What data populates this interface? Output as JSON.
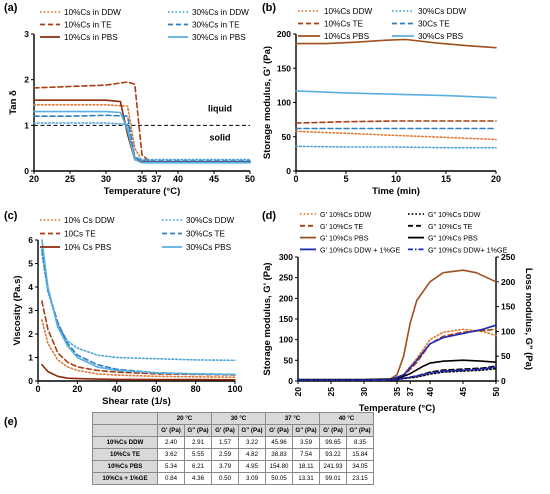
{
  "chart_data": [
    {
      "panel": "(a)",
      "type": "line",
      "xlabel": "Temperature (°C)",
      "ylabel": "Tan δ",
      "xlim": [
        20,
        50
      ],
      "ylim": [
        0,
        3
      ],
      "xticks": [
        20,
        25,
        30,
        35,
        37,
        40,
        45,
        50
      ],
      "yticks": [
        0,
        1,
        2,
        3
      ],
      "reference_line": {
        "y": 1,
        "style": "dashed",
        "color": "#000000"
      },
      "annotations": [
        "liquid",
        "solid"
      ],
      "series": [
        {
          "name": "10%Cs in DDW",
          "color": "#e07b39",
          "dash": "dot",
          "x": [
            20,
            25,
            30,
            33,
            34,
            35,
            36,
            37,
            40,
            45,
            50
          ],
          "y": [
            1.45,
            1.45,
            1.45,
            1.42,
            0.5,
            0.22,
            0.2,
            0.2,
            0.2,
            0.2,
            0.2
          ]
        },
        {
          "name": "10%Cs in TE",
          "color": "#a93e14",
          "dash": "dash",
          "x": [
            20,
            25,
            30,
            33,
            34,
            35,
            36,
            37,
            40,
            45,
            50
          ],
          "y": [
            1.82,
            1.85,
            1.88,
            1.95,
            1.9,
            0.35,
            0.22,
            0.2,
            0.2,
            0.2,
            0.2
          ]
        },
        {
          "name": "10%Cs in PBS",
          "color": "#8b2c0c",
          "dash": "solid",
          "x": [
            20,
            25,
            30,
            32,
            33,
            34,
            35,
            36,
            37,
            40,
            45,
            50
          ],
          "y": [
            1.55,
            1.55,
            1.55,
            1.52,
            0.8,
            0.25,
            0.2,
            0.2,
            0.2,
            0.2,
            0.2,
            0.2
          ]
        },
        {
          "name": "30%Cs in DDW",
          "color": "#4aa3d8",
          "dash": "dot",
          "x": [
            20,
            25,
            30,
            33,
            34,
            35,
            36,
            37,
            40,
            45,
            50
          ],
          "y": [
            1.05,
            1.05,
            1.05,
            1.02,
            0.3,
            0.25,
            0.25,
            0.25,
            0.25,
            0.25,
            0.25
          ]
        },
        {
          "name": "30%Cs in TE",
          "color": "#2f7fc1",
          "dash": "dash",
          "x": [
            20,
            25,
            30,
            33,
            34,
            35,
            36,
            37,
            40,
            45,
            50
          ],
          "y": [
            1.2,
            1.2,
            1.22,
            1.2,
            0.3,
            0.22,
            0.22,
            0.22,
            0.22,
            0.22,
            0.22
          ]
        },
        {
          "name": "30%Cs in PBS",
          "color": "#5aaee0",
          "dash": "solid",
          "x": [
            20,
            25,
            30,
            32,
            33,
            34,
            35,
            36,
            37,
            40,
            45,
            50
          ],
          "y": [
            1.3,
            1.3,
            1.3,
            1.28,
            0.9,
            0.25,
            0.18,
            0.18,
            0.18,
            0.18,
            0.18,
            0.18
          ]
        }
      ]
    },
    {
      "panel": "(b)",
      "type": "line",
      "xlabel": "Time (min)",
      "ylabel": "Storage modulus, G' (Pa)",
      "xlim": [
        0,
        20
      ],
      "ylim": [
        0,
        200
      ],
      "xticks": [
        0,
        5,
        10,
        15,
        20
      ],
      "yticks": [
        0,
        50,
        100,
        150,
        200
      ],
      "series": [
        {
          "name": "10%Cs DDW",
          "color": "#e07b39",
          "dash": "dot",
          "x": [
            0,
            5,
            10,
            15,
            20
          ],
          "y": [
            58,
            55,
            52,
            49,
            46
          ]
        },
        {
          "name": "10%Cs TE",
          "color": "#a93e14",
          "dash": "dash",
          "x": [
            0,
            5,
            10,
            15,
            20
          ],
          "y": [
            70,
            72,
            73,
            73,
            73
          ]
        },
        {
          "name": "10%Cs PBS",
          "color": "#a0501e",
          "dash": "solid",
          "x": [
            0,
            3,
            6,
            9,
            11,
            14,
            17,
            20
          ],
          "y": [
            186,
            186,
            188,
            191,
            192,
            187,
            183,
            180
          ]
        },
        {
          "name": "30%Cs DDW",
          "color": "#4aa3d8",
          "dash": "dot",
          "x": [
            0,
            5,
            10,
            15,
            20
          ],
          "y": [
            36,
            35,
            35,
            34,
            34
          ]
        },
        {
          "name": "30Cs TE",
          "color": "#2f7fc1",
          "dash": "dash",
          "x": [
            0,
            5,
            10,
            15,
            20
          ],
          "y": [
            62,
            62,
            62,
            62,
            62
          ]
        },
        {
          "name": "30%Cs PBS",
          "color": "#5aaee0",
          "dash": "solid",
          "x": [
            0,
            5,
            10,
            15,
            20
          ],
          "y": [
            117,
            114,
            112,
            110,
            107
          ]
        }
      ]
    },
    {
      "panel": "(c)",
      "type": "line",
      "xlabel": "Shear rate (1/s)",
      "ylabel": "Viscosity (Pa.s)",
      "xlim": [
        0,
        100
      ],
      "ylim": [
        0,
        6
      ],
      "xticks": [
        0,
        20,
        40,
        60,
        80,
        100
      ],
      "yticks": [
        0,
        1,
        2,
        3,
        4,
        5,
        6
      ],
      "series": [
        {
          "name": "10% Cs DDW",
          "color": "#e07b39",
          "dash": "dot",
          "x": [
            2,
            5,
            10,
            15,
            20,
            30,
            40,
            60,
            80,
            100
          ],
          "y": [
            2.6,
            1.6,
            0.9,
            0.6,
            0.45,
            0.3,
            0.25,
            0.2,
            0.18,
            0.16
          ]
        },
        {
          "name": "10Cs TE",
          "color": "#a93e14",
          "dash": "dash",
          "x": [
            2,
            5,
            10,
            15,
            20,
            30,
            40,
            60,
            80,
            100
          ],
          "y": [
            3.4,
            2.2,
            1.2,
            0.8,
            0.6,
            0.45,
            0.38,
            0.3,
            0.28,
            0.26
          ]
        },
        {
          "name": "10% Cs PBS",
          "color": "#8b2c0c",
          "dash": "solid",
          "x": [
            2,
            5,
            10,
            15,
            20,
            30,
            40,
            60,
            80,
            100
          ],
          "y": [
            0.7,
            0.4,
            0.2,
            0.12,
            0.1,
            0.08,
            0.07,
            0.06,
            0.06,
            0.05
          ]
        },
        {
          "name": "30%Cs DDW",
          "color": "#4aa3d8",
          "dash": "dot",
          "x": [
            2,
            5,
            10,
            15,
            20,
            30,
            40,
            60,
            80,
            100
          ],
          "y": [
            5.4,
            3.8,
            2.4,
            1.7,
            1.4,
            1.1,
            1.0,
            0.95,
            0.9,
            0.88
          ]
        },
        {
          "name": "30%Cs TE",
          "color": "#2f7fc1",
          "dash": "dash",
          "x": [
            2,
            5,
            10,
            15,
            20,
            30,
            40,
            60,
            80,
            100
          ],
          "y": [
            5.6,
            3.9,
            2.5,
            1.6,
            1.1,
            0.7,
            0.5,
            0.35,
            0.3,
            0.28
          ]
        },
        {
          "name": "30%Cs PBS",
          "color": "#5aaee0",
          "dash": "solid",
          "x": [
            2,
            5,
            10,
            15,
            20,
            30,
            40,
            60,
            80,
            100
          ],
          "y": [
            6.0,
            4.0,
            2.3,
            1.5,
            1.0,
            0.6,
            0.45,
            0.35,
            0.3,
            0.28
          ]
        }
      ]
    },
    {
      "panel": "(d)",
      "type": "line",
      "xlabel": "Temperature (°C)",
      "ylabel": "Storage modulus, G' (Pa)",
      "ylabel_right": "Loss modulus, G\" (Pa)",
      "xlim": [
        20,
        50
      ],
      "ylim": [
        0,
        300
      ],
      "ylim_right": [
        0,
        250
      ],
      "xticks": [
        20,
        25,
        30,
        35,
        37,
        40,
        45,
        50
      ],
      "yticks": [
        0,
        50,
        100,
        150,
        200,
        250,
        300
      ],
      "yticks_right": [
        0,
        50,
        100,
        150,
        200,
        250
      ],
      "series": [
        {
          "name": "G' 10%Cs DDW",
          "axis": "left",
          "color": "#e07b39",
          "dash": "dot",
          "x": [
            20,
            30,
            34,
            36,
            38,
            40,
            42,
            45,
            48,
            50
          ],
          "y": [
            2,
            2,
            3,
            15,
            55,
            100,
            118,
            125,
            120,
            110
          ]
        },
        {
          "name": "G' 10%Cs TE",
          "axis": "left",
          "color": "#a93e14",
          "dash": "dash",
          "x": [
            20,
            30,
            34,
            36,
            38,
            40,
            42,
            45,
            48,
            50
          ],
          "y": [
            2,
            2,
            3,
            12,
            45,
            90,
            108,
            118,
            122,
            125
          ]
        },
        {
          "name": "G' 10%Cs PBS",
          "axis": "left",
          "color": "#a0501e",
          "dash": "solid",
          "x": [
            20,
            30,
            34,
            35,
            36,
            37,
            38,
            40,
            42,
            45,
            47,
            50
          ],
          "y": [
            3,
            3,
            5,
            15,
            60,
            140,
            195,
            240,
            262,
            268,
            262,
            240
          ]
        },
        {
          "name": "G' 10%Cs DDW + 1%GE",
          "axis": "left",
          "color": "#1f2bb4",
          "dash": "solid",
          "x": [
            20,
            30,
            34,
            36,
            38,
            40,
            42,
            45,
            48,
            50
          ],
          "y": [
            2,
            2,
            3,
            15,
            50,
            90,
            105,
            115,
            125,
            135
          ]
        },
        {
          "name": "G\" 10%Cs DDW",
          "axis": "right",
          "color": "#000000",
          "dash": "dot",
          "x": [
            20,
            30,
            35,
            38,
            40,
            42,
            45,
            48,
            50
          ],
          "y": [
            2,
            2,
            3,
            8,
            14,
            18,
            20,
            22,
            25
          ]
        },
        {
          "name": "G\" 10%Cs TE",
          "axis": "right",
          "color": "#000000",
          "dash": "dash",
          "x": [
            20,
            30,
            35,
            38,
            40,
            42,
            45,
            48,
            50
          ],
          "y": [
            2,
            2,
            3,
            10,
            18,
            22,
            24,
            26,
            30
          ]
        },
        {
          "name": "G\" 10%Cs PBS",
          "axis": "right",
          "color": "#000000",
          "dash": "solid",
          "x": [
            20,
            30,
            35,
            37,
            39,
            40,
            42,
            45,
            48,
            50
          ],
          "y": [
            3,
            3,
            4,
            15,
            30,
            36,
            40,
            42,
            40,
            38
          ]
        },
        {
          "name": "G\" 10%Cs DDW+ 1%GE",
          "axis": "right",
          "color": "#1f2bb4",
          "dash": "dashdot",
          "x": [
            20,
            30,
            35,
            38,
            40,
            42,
            45,
            48,
            50
          ],
          "y": [
            2,
            2,
            3,
            10,
            16,
            20,
            22,
            24,
            28
          ]
        }
      ]
    },
    {
      "panel": "(e)",
      "type": "table",
      "temperatures": [
        "20 °C",
        "30 °C",
        "37 °C",
        "40 °C"
      ],
      "subheaders": [
        "G' (Pa)",
        "G\" (Pa)"
      ],
      "rows": [
        {
          "label": "10%Cs DDW",
          "values": [
            "2.40",
            "2.91",
            "1.57",
            "3.22",
            "45.96",
            "3.59",
            "99.65",
            "8.35"
          ]
        },
        {
          "label": "10%Cs TE",
          "values": [
            "3.62",
            "5.55",
            "2.59",
            "4.82",
            "38.83",
            "7.54",
            "93.22",
            "15.84"
          ]
        },
        {
          "label": "10%Cs PBS",
          "values": [
            "5.34",
            "6.21",
            "3.79",
            "4.95",
            "154.80",
            "18.11",
            "241.93",
            "34.05"
          ]
        },
        {
          "label": "10%Cs + 1%GE",
          "values": [
            "0.84",
            "4.36",
            "0.50",
            "3.09",
            "50.05",
            "13.31",
            "99.01",
            "23.15"
          ]
        }
      ]
    }
  ]
}
